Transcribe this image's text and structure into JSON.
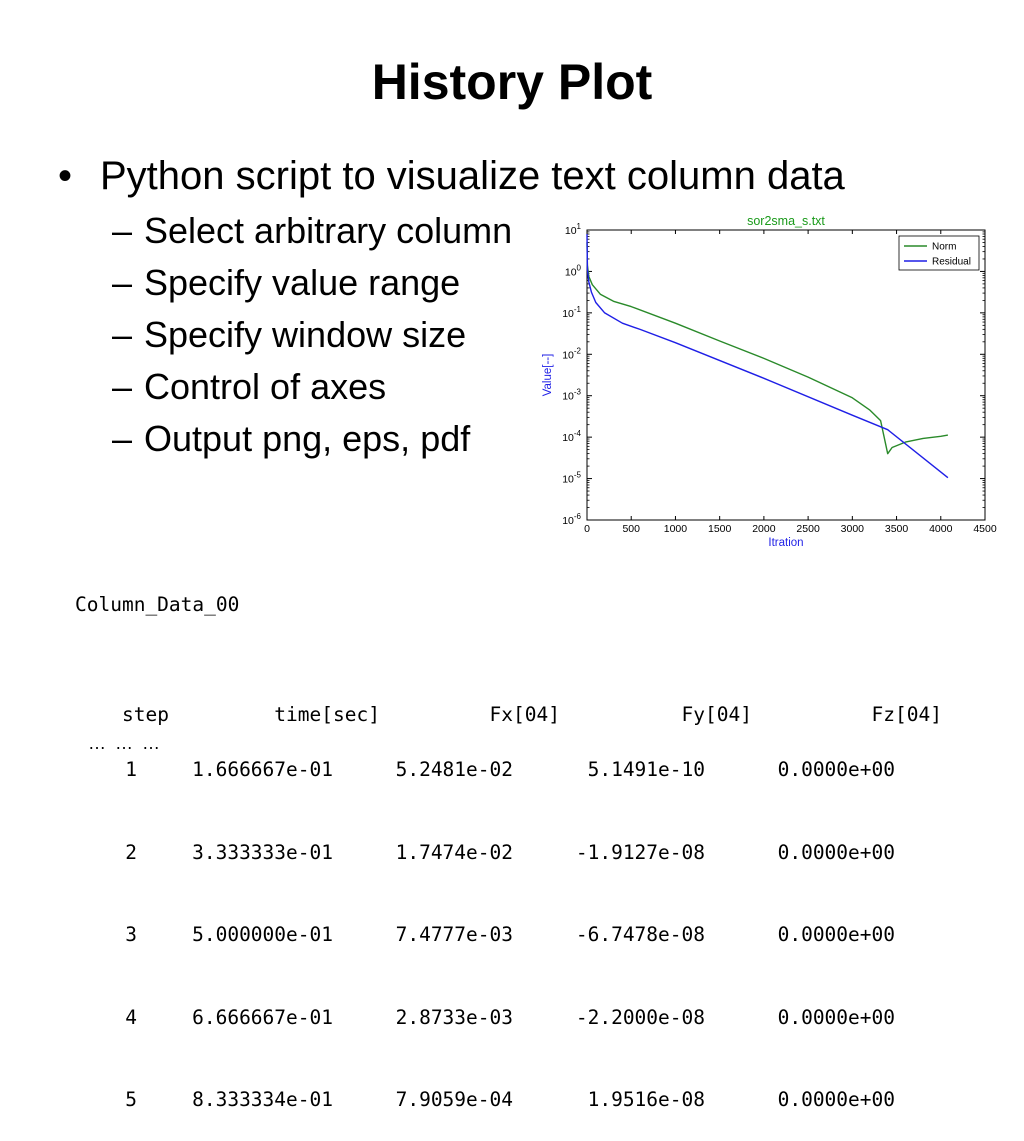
{
  "slide": {
    "title": "History Plot",
    "bullet_marker": "•",
    "bullet": "Python script to visualize text column data",
    "dash_marker": "–",
    "subitems": [
      "Select arbitrary column",
      "Specify value range",
      "Specify window size",
      "Control of axes",
      "Output png, eps, pdf"
    ]
  },
  "chart_data": {
    "type": "line",
    "title": "sor2sma_s.txt",
    "xlabel": "Itration",
    "ylabel": "Value[--]",
    "xlim": [
      0,
      4500
    ],
    "ylim_log10": [
      -6,
      1
    ],
    "yscale": "log",
    "x_ticks": [
      "0",
      "500",
      "1000",
      "1500",
      "2000",
      "2500",
      "3000",
      "3500",
      "4000",
      "4500"
    ],
    "y_tick_exponents": [
      "1",
      "0",
      "-1",
      "-2",
      "-3",
      "-4",
      "-5",
      "-6"
    ],
    "y_tick_base": "10",
    "legend_position": "top-right",
    "series": [
      {
        "name": "Norm",
        "color": "#2a8a2a",
        "x": [
          0,
          5,
          20,
          60,
          150,
          300,
          500,
          1000,
          1500,
          2000,
          2500,
          3000,
          3200,
          3320,
          3400,
          3450,
          3600,
          3800,
          4000,
          4080
        ],
        "log10y": [
          0.7,
          0.15,
          -0.12,
          -0.32,
          -0.55,
          -0.72,
          -0.85,
          -1.25,
          -1.68,
          -2.1,
          -2.55,
          -3.05,
          -3.35,
          -3.6,
          -4.4,
          -4.25,
          -4.12,
          -4.03,
          -3.98,
          -3.95
        ]
      },
      {
        "name": "Residual",
        "color": "#1f1fe6",
        "x": [
          0,
          5,
          20,
          50,
          100,
          200,
          400,
          600,
          1000,
          2000,
          3000,
          3400,
          4080
        ],
        "log10y": [
          0.9,
          0.05,
          -0.25,
          -0.5,
          -0.75,
          -1.0,
          -1.25,
          -1.4,
          -1.72,
          -2.58,
          -3.47,
          -3.82,
          -4.98
        ]
      }
    ]
  },
  "table": {
    "title": "Column_Data_00",
    "headers": [
      "step",
      "time[sec]",
      "Fx[04]",
      "Fy[04]",
      "Fz[04]"
    ],
    "rows": [
      [
        "1",
        "1.666667e-01",
        "5.2481e-02",
        "5.1491e-10",
        "0.0000e+00"
      ],
      [
        "2",
        "3.333333e-01",
        "1.7474e-02",
        "-1.9127e-08",
        "0.0000e+00"
      ],
      [
        "3",
        "5.000000e-01",
        "7.4777e-03",
        "-6.7478e-08",
        "0.0000e+00"
      ],
      [
        "4",
        "6.666667e-01",
        "2.8733e-03",
        "-2.2000e-08",
        "0.0000e+00"
      ],
      [
        "5",
        "8.333334e-01",
        "7.9059e-04",
        "1.9516e-08",
        "0.0000e+00"
      ]
    ],
    "ellipsis": "… … …"
  }
}
